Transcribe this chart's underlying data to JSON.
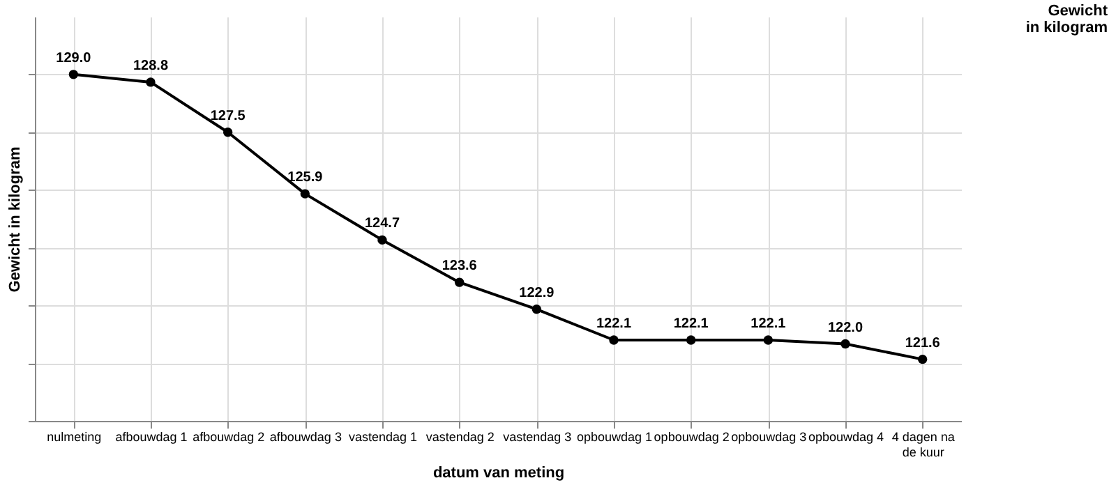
{
  "chart_data": {
    "type": "line",
    "xlabel": "datum van meting",
    "ylabel": "Gewicht in kilogram",
    "annotations": [
      "Gewicht\nin kilogram"
    ],
    "categories": [
      "nulmeting",
      "afbouwdag 1",
      "afbouwdag 2",
      "afbouwdag 3",
      "vastendag 1",
      "vastendag 2",
      "vastendag 3",
      "opbouwdag 1",
      "opbouwdag 2",
      "opbouwdag 3",
      "opbouwdag 4",
      "4 dagen na de kuur"
    ],
    "series": [
      {
        "color": "#000000",
        "values": [
          129.0,
          128.8,
          127.5,
          125.9,
          124.7,
          123.6,
          122.9,
          122.1,
          122.1,
          122.1,
          122.0,
          121.6
        ],
        "value_labels": [
          "129.0",
          "128.8",
          "127.5",
          "125.9",
          "124.7",
          "123.6",
          "122.9",
          "122.1",
          "122.1",
          "122.1",
          "122.0",
          "121.6"
        ]
      }
    ],
    "ylim": [
      120,
      130.5
    ],
    "yticks": [
      {
        "value": 120,
        "label": null
      },
      {
        "value": 121.5,
        "label": null
      },
      {
        "value": 123,
        "label": null
      },
      {
        "value": 124.5,
        "label": null
      },
      {
        "value": 126,
        "label": null
      },
      {
        "value": 127.5,
        "label": null
      },
      {
        "value": 129,
        "label": null
      }
    ],
    "tick_labels": "x",
    "grid": true,
    "marker": "circle",
    "line_style": "solid"
  }
}
